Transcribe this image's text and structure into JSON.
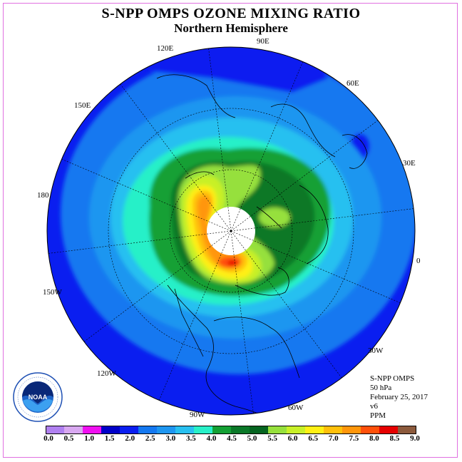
{
  "title": "S-NPP OMPS OZONE MIXING RATIO",
  "subtitle": "Northern Hemisphere",
  "longitude_labels": [
    "90E",
    "60E",
    "30E",
    "0",
    "30W",
    "60W",
    "90W",
    "120W",
    "150W",
    "180",
    "150E",
    "120E"
  ],
  "info": {
    "instrument": "S-NPP OMPS",
    "pressure": "50 hPa",
    "date": "February 25, 2017",
    "version": "v6",
    "units": "PPM"
  },
  "colorbar": {
    "ticks": [
      "0.0",
      "0.5",
      "1.0",
      "1.5",
      "2.0",
      "2.5",
      "3.0",
      "3.5",
      "4.0",
      "4.5",
      "5.0",
      "5.5",
      "6.0",
      "6.5",
      "7.0",
      "7.5",
      "8.0",
      "8.5",
      "9.0"
    ],
    "colors": [
      "#b080f0",
      "#d8a8f0",
      "#f010f0",
      "#0000c8",
      "#0a1ef0",
      "#1478f0",
      "#1e96f0",
      "#28c0f0",
      "#28f0c8",
      "#14a034",
      "#0a7828",
      "#056420",
      "#96e03c",
      "#c8f028",
      "#fff014",
      "#ffc00a",
      "#ff960a",
      "#ff500a",
      "#e60000",
      "#8c5a3c"
    ]
  },
  "logo": {
    "label": "NOAA",
    "icon": "noaa-logo-icon"
  }
}
